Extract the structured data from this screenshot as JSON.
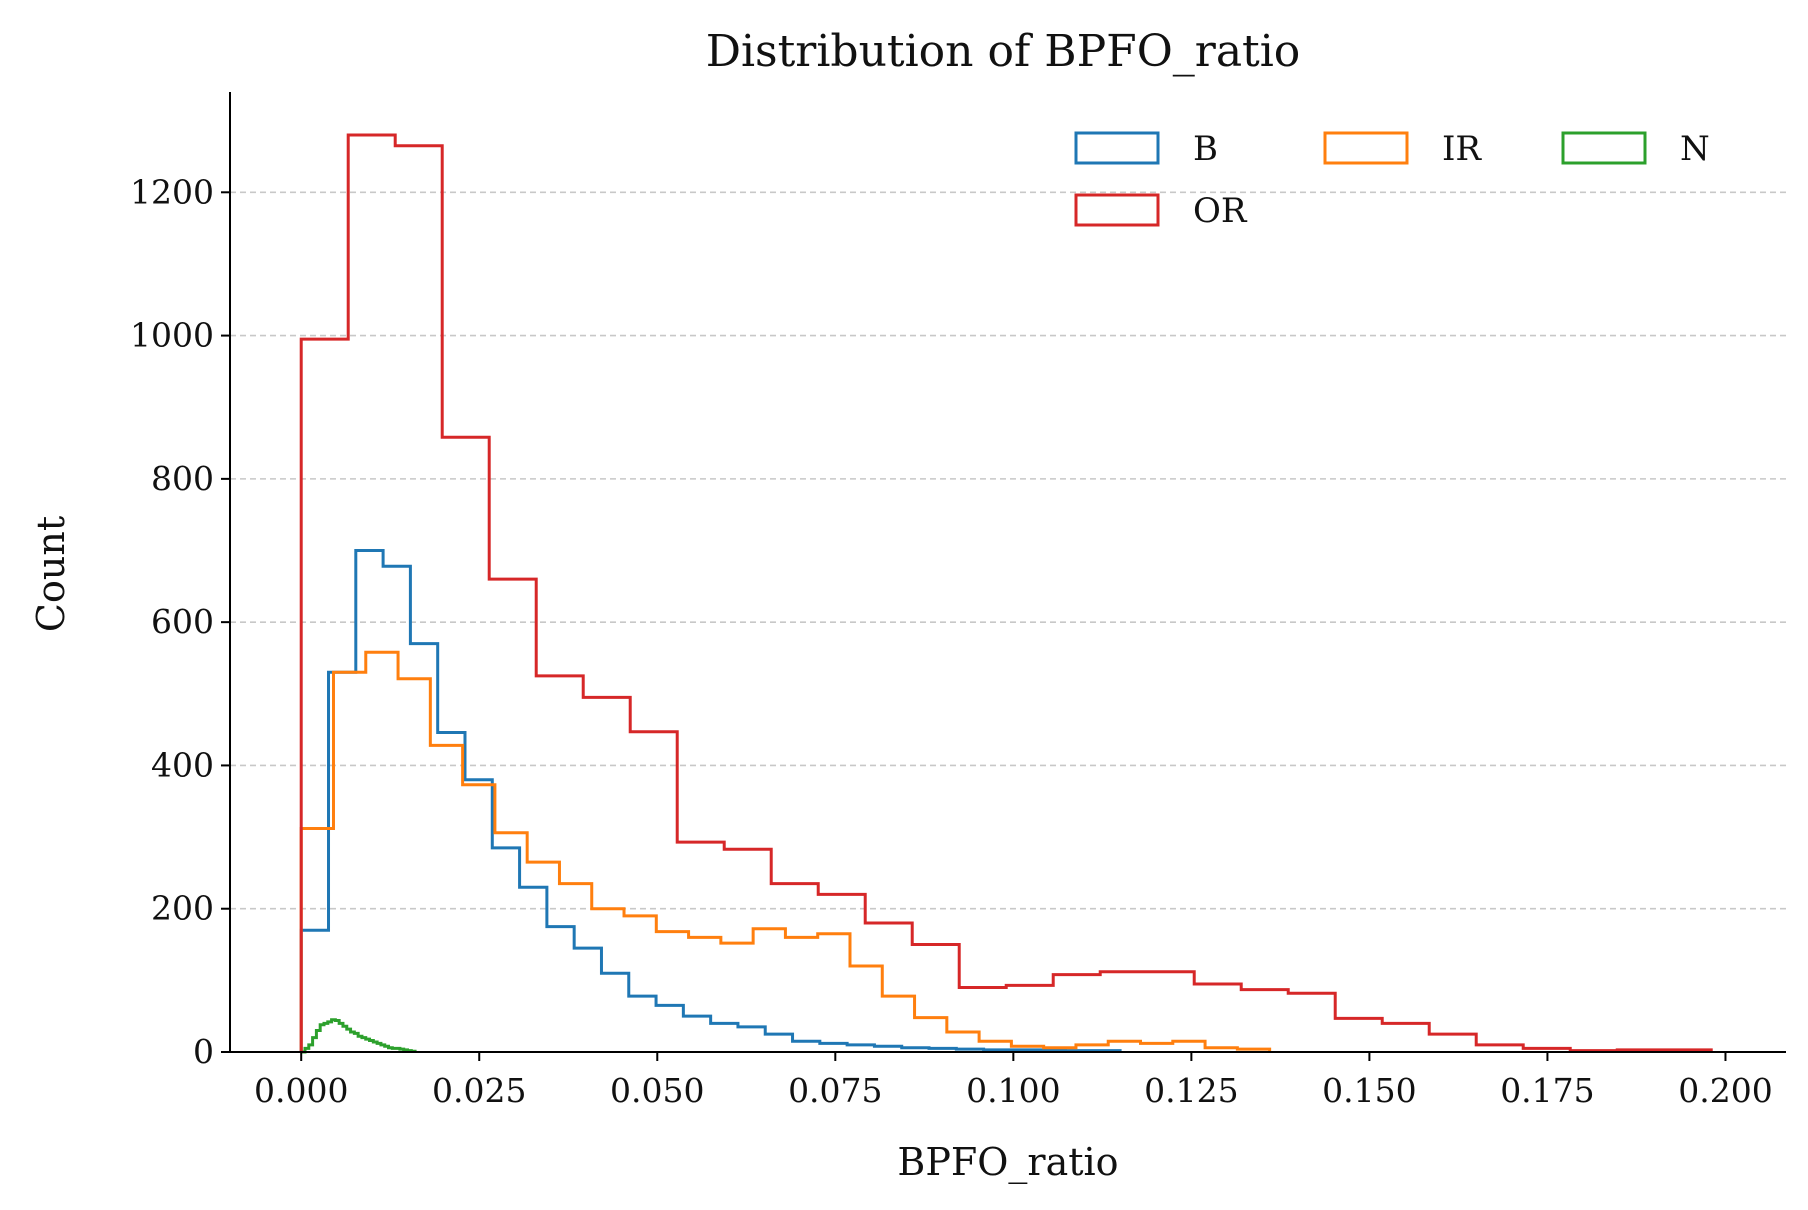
{
  "chart_data": {
    "type": "histogram",
    "title": "Distribution of BPFO_ratio",
    "xlabel": "BPFO_ratio",
    "ylabel": "Count",
    "xlim": [
      -0.01,
      0.2085
    ],
    "ylim": [
      0,
      1340
    ],
    "xticks": [
      0.0,
      0.025,
      0.05,
      0.075,
      0.1,
      0.125,
      0.15,
      0.175,
      0.2
    ],
    "xtick_labels": [
      "0.000",
      "0.025",
      "0.050",
      "0.075",
      "0.100",
      "0.125",
      "0.150",
      "0.175",
      "0.200"
    ],
    "yticks": [
      0,
      200,
      400,
      600,
      800,
      1000,
      1200
    ],
    "ytick_labels": [
      "0",
      "200",
      "400",
      "600",
      "800",
      "1000",
      "1200"
    ],
    "grid": "y-dashed",
    "legend_placement": "top-right",
    "legend_columns": 3,
    "series": [
      {
        "name": "B",
        "color": "#1f77b4",
        "bin_start": 0.0,
        "bin_width": 0.003833,
        "counts": [
          170,
          530,
          700,
          678,
          570,
          446,
          380,
          285,
          230,
          175,
          145,
          110,
          78,
          65,
          50,
          40,
          35,
          25,
          15,
          12,
          10,
          8,
          6,
          5,
          4,
          3,
          3,
          3,
          2,
          2
        ]
      },
      {
        "name": "IR",
        "color": "#ff7f0e",
        "bin_start": 0.0,
        "bin_width": 0.004533,
        "counts": [
          312,
          530,
          558,
          521,
          428,
          373,
          306,
          265,
          235,
          200,
          190,
          168,
          160,
          152,
          172,
          160,
          165,
          120,
          78,
          48,
          28,
          15,
          8,
          6,
          10,
          15,
          12,
          15,
          6,
          4
        ]
      },
      {
        "name": "N",
        "color": "#2ca02c",
        "bin_start": 0.0,
        "bin_width": 0.000533,
        "counts": [
          0,
          5,
          10,
          20,
          30,
          38,
          40,
          42,
          45,
          44,
          40,
          36,
          32,
          28,
          26,
          22,
          20,
          18,
          16,
          14,
          12,
          10,
          8,
          6,
          5,
          5,
          4,
          3,
          2,
          1
        ]
      },
      {
        "name": "OR",
        "color": "#d62728",
        "bin_start": 0.0,
        "bin_width": 0.0066,
        "counts": [
          995,
          1280,
          1265,
          858,
          660,
          525,
          495,
          447,
          293,
          283,
          235,
          220,
          180,
          150,
          90,
          93,
          108,
          112,
          112,
          95,
          87,
          82,
          47,
          40,
          25,
          10,
          5,
          2,
          3,
          3
        ]
      }
    ]
  }
}
